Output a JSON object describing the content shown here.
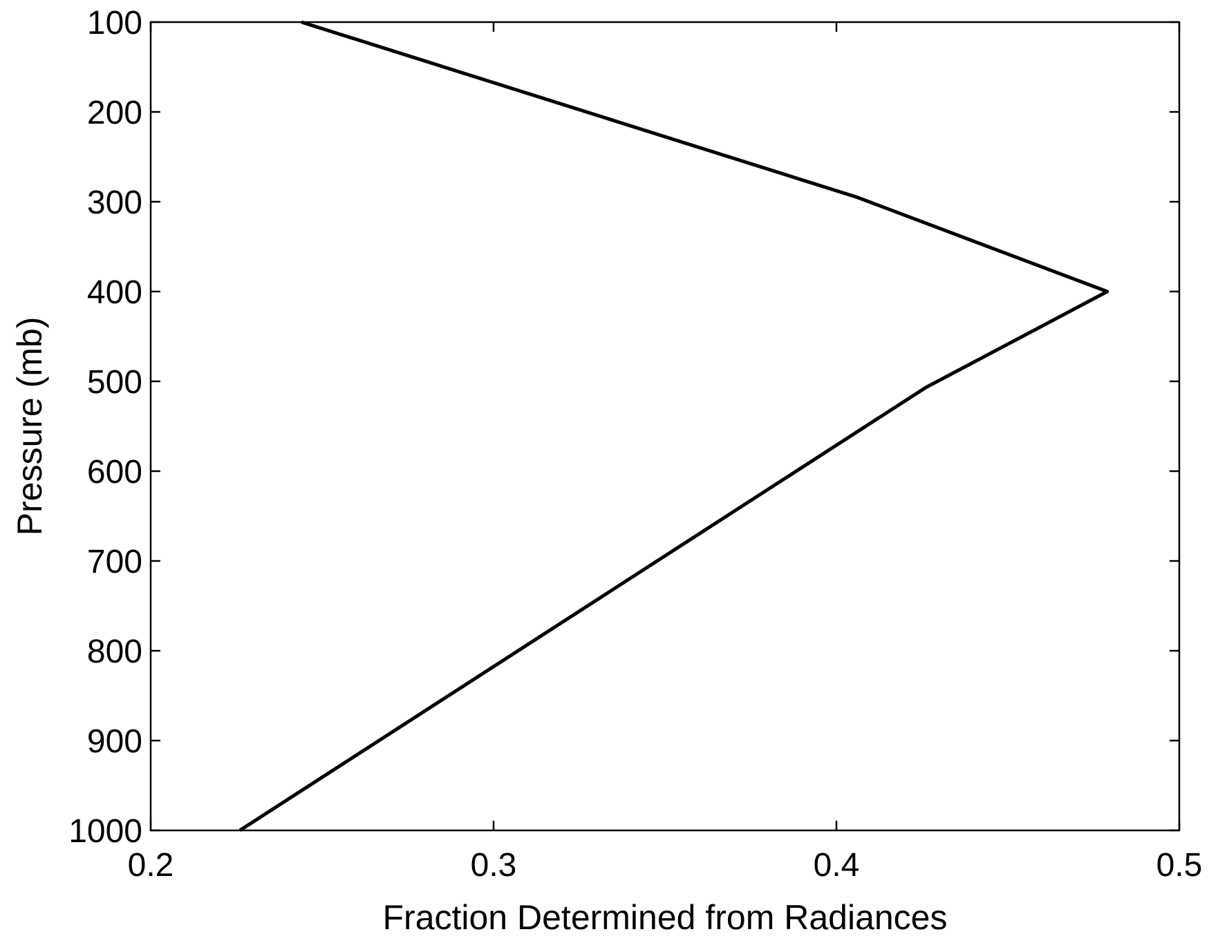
{
  "chart_data": {
    "type": "line",
    "title": "",
    "xlabel": "Fraction Determined from Radiances",
    "ylabel": "Pressure (mb)",
    "xlim": [
      0.2,
      0.5
    ],
    "ylim": [
      100,
      1000
    ],
    "y_reversed": true,
    "xticks": [
      0.2,
      0.3,
      0.4,
      0.5
    ],
    "xtick_labels": [
      "0.2",
      "0.3",
      "0.4",
      "0.5"
    ],
    "yticks": [
      100,
      200,
      300,
      400,
      500,
      600,
      700,
      800,
      900,
      1000
    ],
    "ytick_labels": [
      "100",
      "200",
      "300",
      "400",
      "500",
      "600",
      "700",
      "800",
      "900",
      "1000"
    ],
    "grid": false,
    "legend": "none",
    "series": [
      {
        "color": "#000000",
        "points": [
          {
            "x": 0.244,
            "y": 100
          },
          {
            "x": 0.406,
            "y": 295
          },
          {
            "x": 0.479,
            "y": 400
          },
          {
            "x": 0.426,
            "y": 507
          },
          {
            "x": 0.226,
            "y": 1000
          }
        ]
      }
    ]
  }
}
